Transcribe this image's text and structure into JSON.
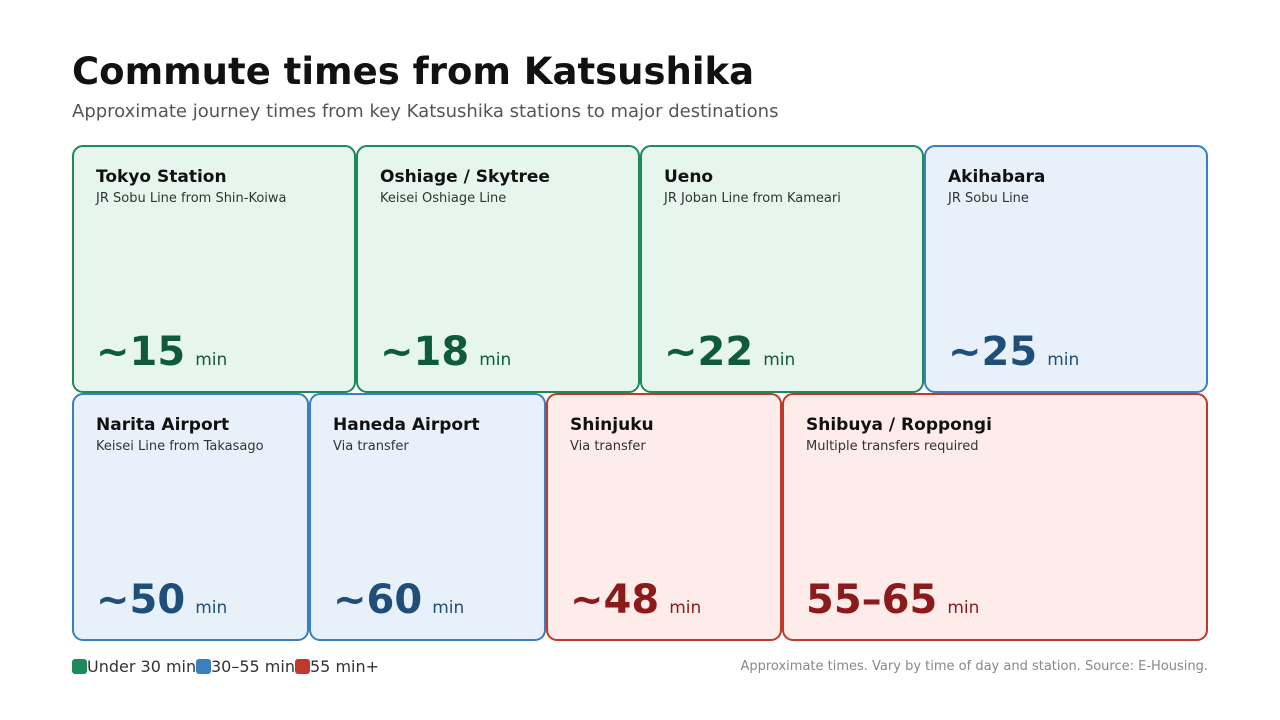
{
  "header": {
    "title": "Commute times from Katsushika",
    "subtitle": "Approximate journey times from key Katsushika stations to major destinations"
  },
  "cards": [
    {
      "name": "Tokyo Station",
      "route": "JR Sobu Line from Shin-Koiwa",
      "time": "~15",
      "unit": "min"
    },
    {
      "name": "Oshiage / Skytree",
      "route": "Keisei Oshiage Line",
      "time": "~18",
      "unit": "min"
    },
    {
      "name": "Ueno",
      "route": "JR Joban Line from Kameari",
      "time": "~22",
      "unit": "min"
    },
    {
      "name": "Akihabara",
      "route": "JR Sobu Line",
      "time": "~25",
      "unit": "min"
    },
    {
      "name": "Narita Airport",
      "route": "Keisei Line from Takasago",
      "time": "~50",
      "unit": "min"
    },
    {
      "name": "Haneda Airport",
      "route": "Via transfer",
      "time": "~60",
      "unit": "min"
    },
    {
      "name": "Shinjuku",
      "route": "Via transfer",
      "time": "~48",
      "unit": "min"
    },
    {
      "name": "Shibuya / Roppongi",
      "route": "Multiple transfers required",
      "time": "55–65",
      "unit": "min"
    }
  ],
  "legend": [
    "Under 30 min",
    "30–55 min",
    "55 min+"
  ],
  "footnote": "Approximate times. Vary by time of day and station. Source: E-Housing."
}
